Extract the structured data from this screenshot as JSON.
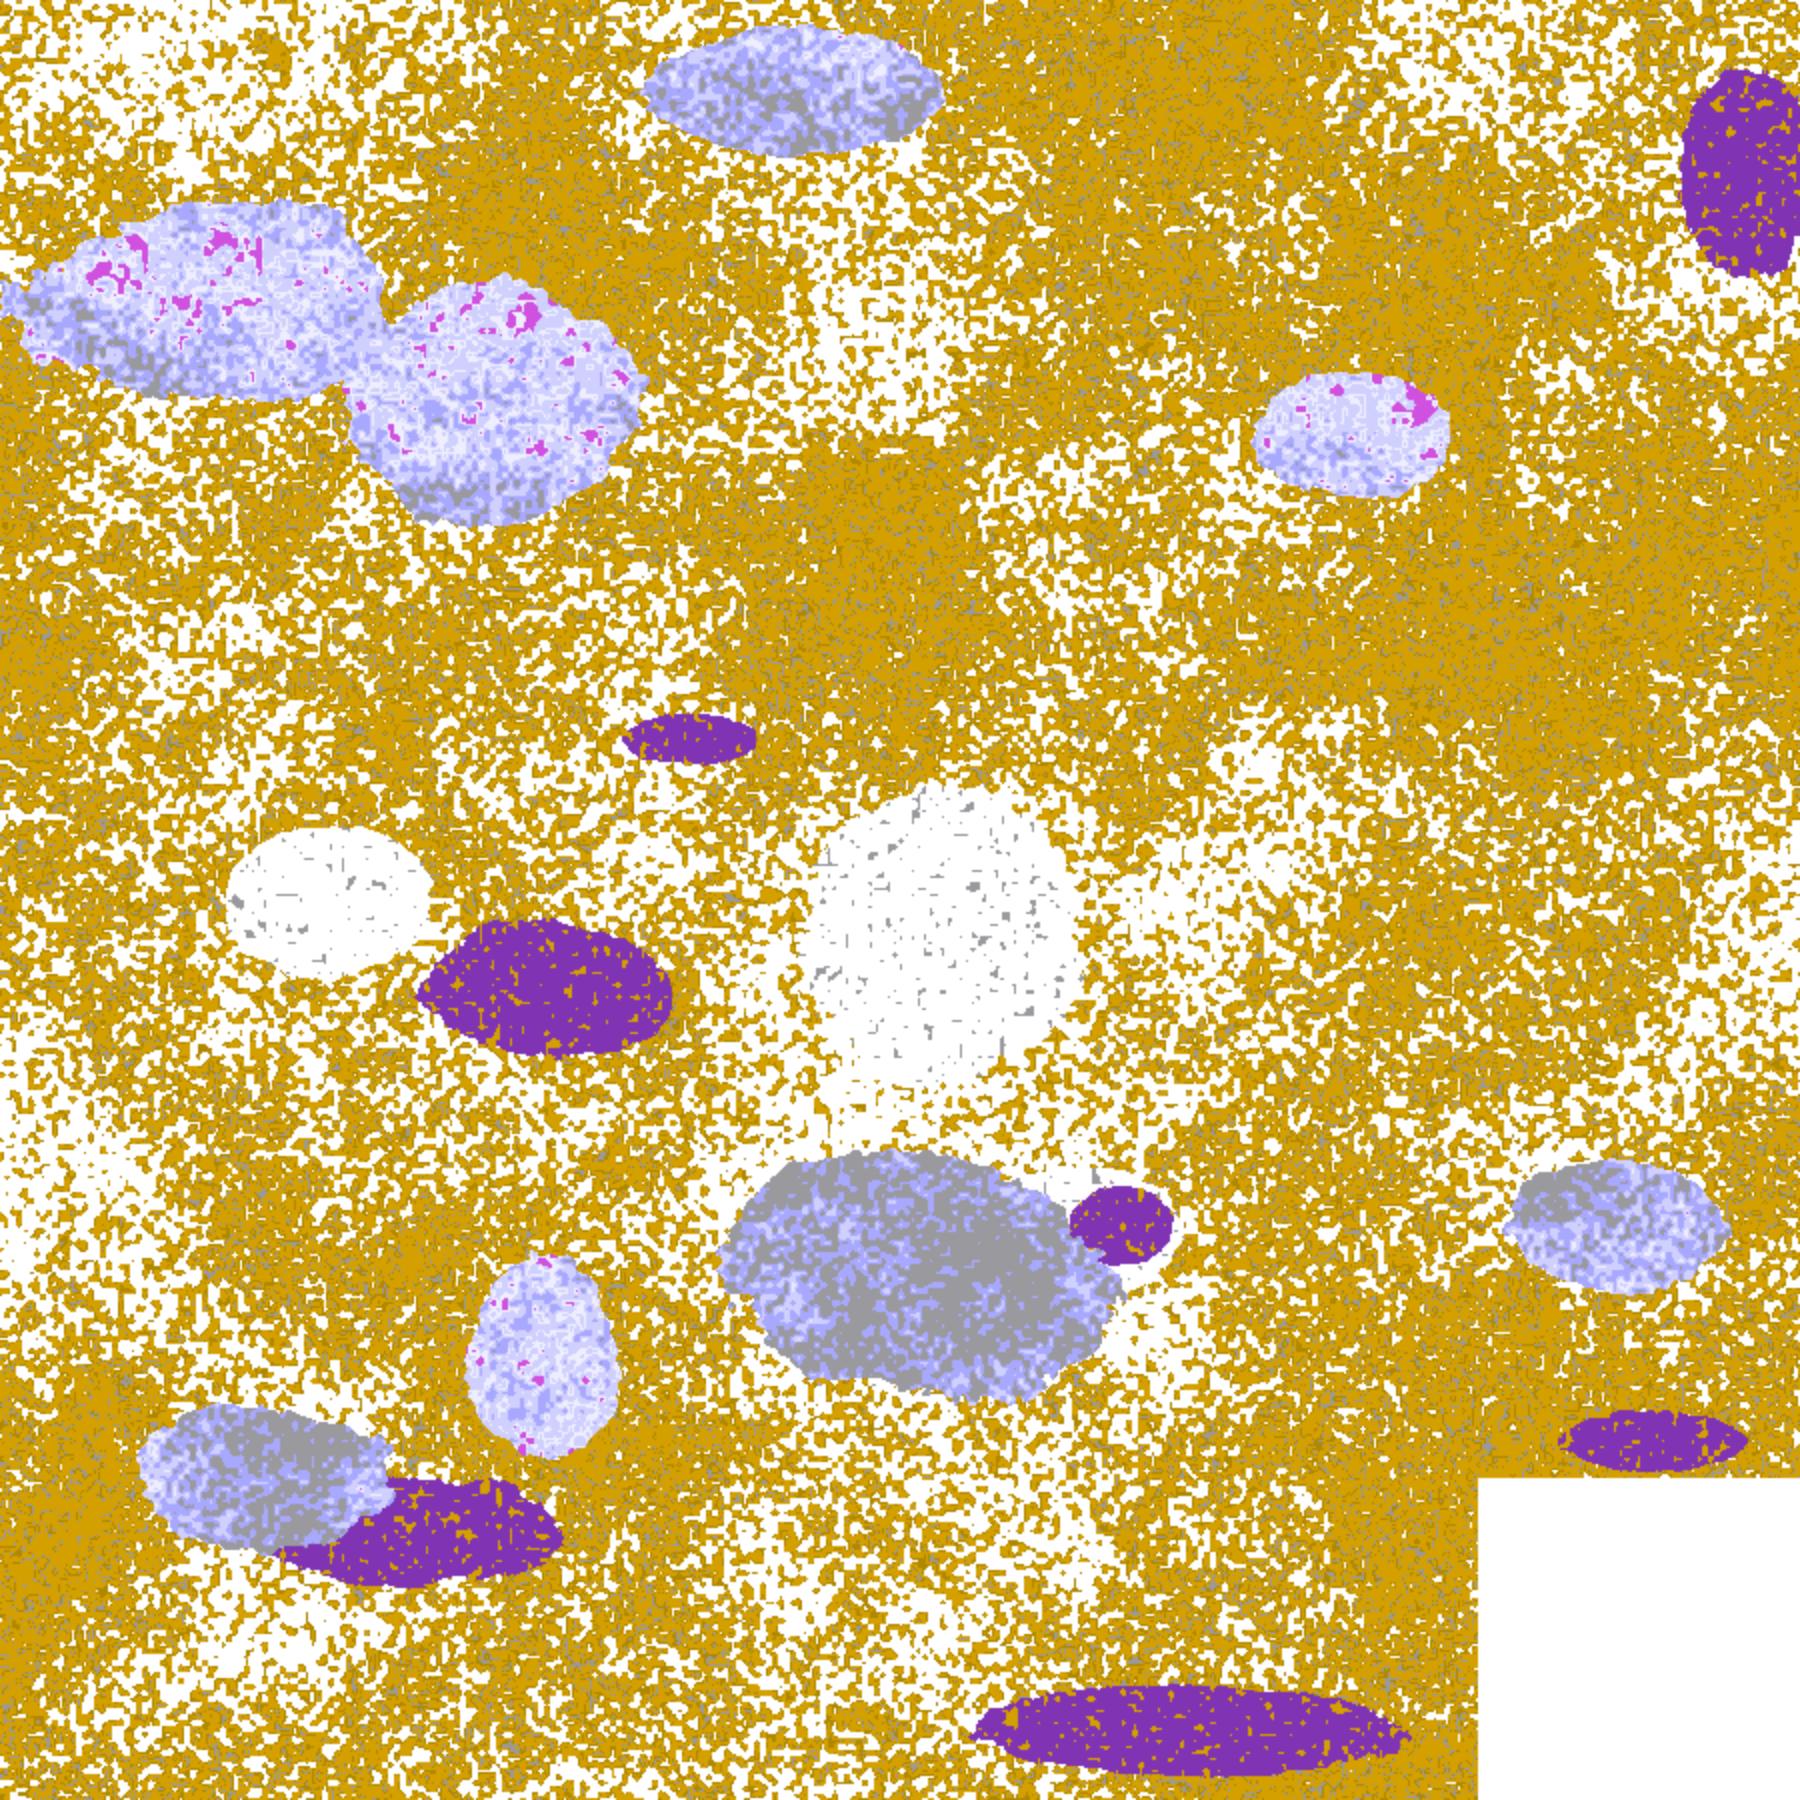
{
  "image": {
    "kind": "satellite cloud classification composite",
    "palette": {
      "clear": "#ffffff",
      "gold": "#d4a000",
      "gold_dark": "#b08800",
      "gray": "#9a9a9e",
      "lavender": "#a8a8ff",
      "pale_lavender": "#d0d0ff",
      "near_white": "#eeeeff",
      "magenta": "#d050e0",
      "purple": "#8033b3"
    }
  }
}
